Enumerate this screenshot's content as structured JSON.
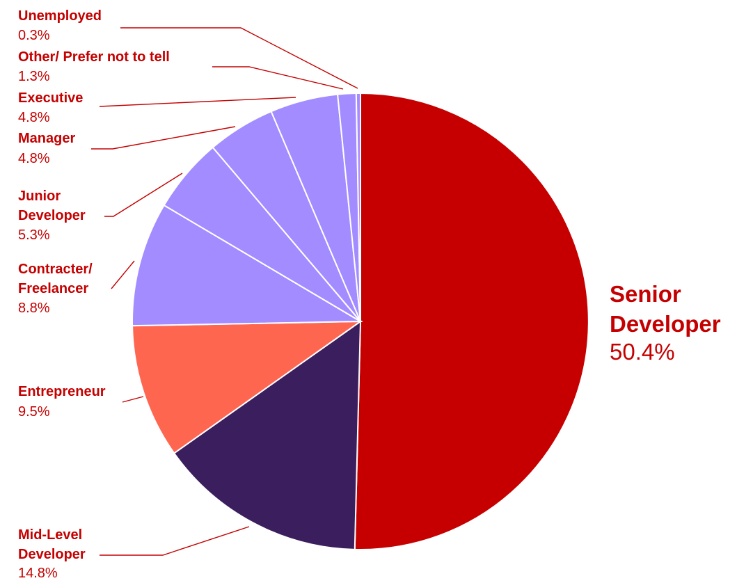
{
  "chart_data": {
    "type": "pie",
    "start_angle_deg": 0,
    "direction": "clockwise",
    "colors": {
      "label_text": "#c40000",
      "leader_line": "#c40000"
    },
    "slices": [
      {
        "label_lines": [
          "Senior",
          "Developer"
        ],
        "value": 50.4,
        "value_label": "50.4%",
        "color": "#c60000"
      },
      {
        "label_lines": [
          "Mid-Level",
          "Developer"
        ],
        "value": 14.8,
        "value_label": "14.8%",
        "color": "#3b1e5e"
      },
      {
        "label_lines": [
          "Entrepreneur"
        ],
        "value": 9.5,
        "value_label": "9.5%",
        "color": "#ff6650"
      },
      {
        "label_lines": [
          "Contracter/",
          "Freelancer"
        ],
        "value": 8.8,
        "value_label": "8.8%",
        "color": "#a38cff"
      },
      {
        "label_lines": [
          "Junior",
          "Developer"
        ],
        "value": 5.3,
        "value_label": "5.3%",
        "color": "#a38cff"
      },
      {
        "label_lines": [
          "Manager"
        ],
        "value": 4.8,
        "value_label": "4.8%",
        "color": "#a38cff"
      },
      {
        "label_lines": [
          "Executive"
        ],
        "value": 4.8,
        "value_label": "4.8%",
        "color": "#a38cff"
      },
      {
        "label_lines": [
          "Other/ Prefer not to tell"
        ],
        "value": 1.3,
        "value_label": "1.3%",
        "color": "#a38cff"
      },
      {
        "label_lines": [
          "Unemployed"
        ],
        "value": 0.3,
        "value_label": "0.3%",
        "color": "#a38cff"
      }
    ]
  }
}
